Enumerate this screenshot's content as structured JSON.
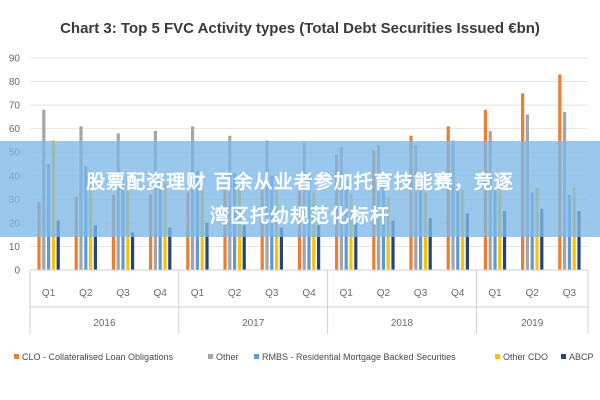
{
  "chart_data": {
    "type": "bar",
    "title": "Chart 3: Top 5 FVC Activity types (Total Debt Securities Issued €bn)",
    "categories": [
      "Q1",
      "Q2",
      "Q3",
      "Q4",
      "Q1",
      "Q2",
      "Q3",
      "Q4",
      "Q1",
      "Q2",
      "Q3",
      "Q4",
      "Q1",
      "Q2",
      "Q3"
    ],
    "years": [
      {
        "label": "2016",
        "quarters": 4
      },
      {
        "label": "2017",
        "quarters": 4
      },
      {
        "label": "2018",
        "quarters": 4
      },
      {
        "label": "2019",
        "quarters": 3
      }
    ],
    "ylim": [
      0,
      90
    ],
    "yticks": [
      0,
      10,
      20,
      30,
      40,
      50,
      60,
      70,
      80,
      90
    ],
    "grid": true,
    "legend_position": "bottom",
    "series": [
      {
        "name": "CLO - Collateralised Loan Obligations",
        "color": "#ed7d31",
        "values": [
          29,
          31,
          32,
          32,
          33,
          34,
          35,
          38,
          49,
          51,
          57,
          61,
          68,
          75,
          83
        ]
      },
      {
        "name": "Other",
        "color": "#a5a5a5",
        "values": [
          68,
          61,
          58,
          59,
          61,
          57,
          55,
          54,
          52,
          53,
          53,
          55,
          59,
          66,
          67
        ]
      },
      {
        "name": "RMBS - Residential Mortgage Backed Securities",
        "color": "#5b9bd5",
        "values": [
          45,
          44,
          40,
          39,
          42,
          41,
          40,
          40,
          38,
          37,
          36,
          35,
          34,
          33,
          32
        ]
      },
      {
        "name": "Other CDO",
        "color": "#ffc000",
        "values": [
          55,
          42,
          38,
          37,
          36,
          35,
          34,
          33,
          32,
          31,
          33,
          34,
          36,
          35,
          35
        ]
      },
      {
        "name": "ABCP",
        "color": "#264478",
        "values": [
          21,
          19,
          16,
          18,
          20,
          19,
          18,
          19,
          20,
          21,
          22,
          24,
          25,
          26,
          25
        ]
      }
    ]
  },
  "overlay": {
    "line1": "股票配资理财 百余从业者参加托育技能赛，竞逐",
    "line2": "湾区托幼规范化标杆"
  }
}
